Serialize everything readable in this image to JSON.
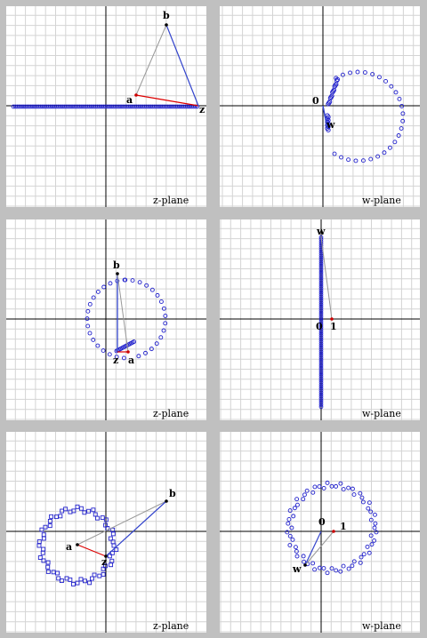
{
  "panels": [
    {
      "id": "row1-z",
      "plane_label": "z-plane",
      "points": {
        "a": "a",
        "b": "b",
        "z": "z"
      },
      "dot_color": "#0000cc"
    },
    {
      "id": "row1-w",
      "plane_label": "w-plane",
      "points": {
        "origin": "0",
        "w": "w"
      },
      "dot_color": "#0000cc"
    },
    {
      "id": "row2-z",
      "plane_label": "z-plane",
      "points": {
        "a": "a",
        "b": "b",
        "z": "z"
      },
      "dot_color": "#0000cc"
    },
    {
      "id": "row2-w",
      "plane_label": "w-plane",
      "points": {
        "origin": "0",
        "one": "1",
        "w": "w"
      },
      "dot_color": "#0000cc"
    },
    {
      "id": "row3-z",
      "plane_label": "z-plane",
      "points": {
        "a": "a",
        "b": "b",
        "z": "z"
      },
      "dot_color": "#0000cc"
    },
    {
      "id": "row3-w",
      "plane_label": "w-plane",
      "points": {
        "origin": "0",
        "one": "1",
        "w": "w"
      },
      "dot_color": "#0000cc"
    }
  ],
  "colors": {
    "background": "#c0c0c0",
    "panel": "#ffffff",
    "grid": "#d4d4d4",
    "axis": "#000000",
    "trace": "#2222cc",
    "segment_blue": "#3344cc",
    "segment_red": "#dd0000",
    "segment_gray": "#999999"
  }
}
